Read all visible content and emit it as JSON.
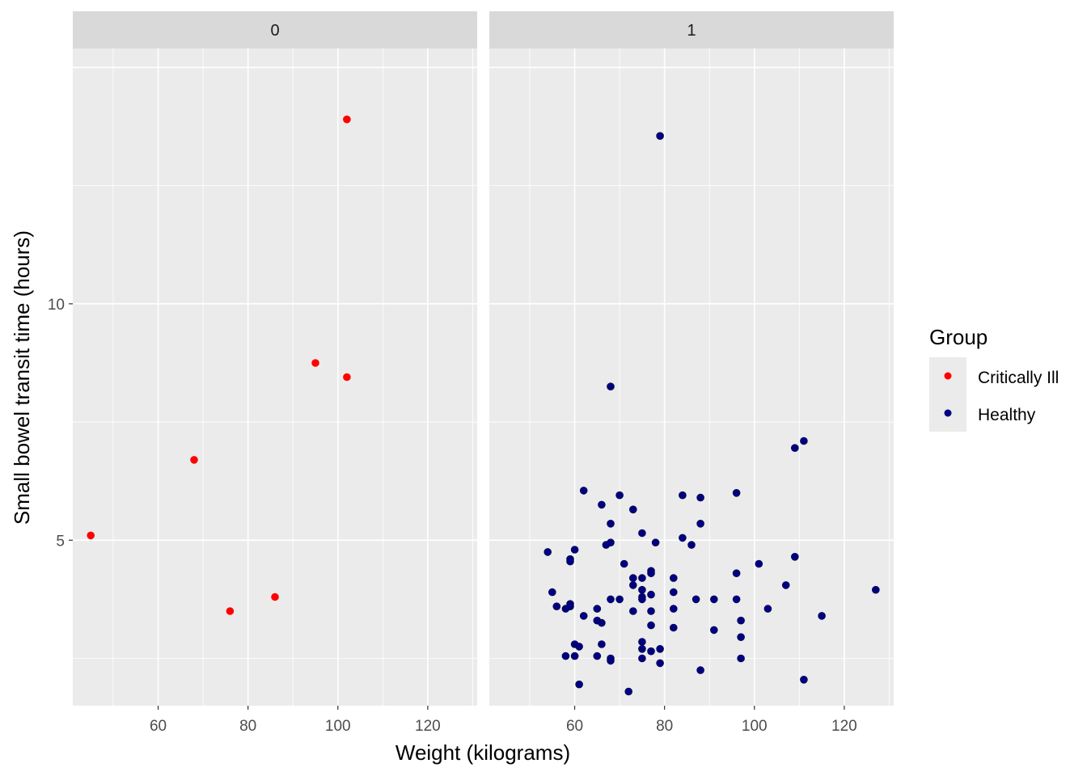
{
  "chart_data": {
    "type": "scatter",
    "facet_labels": [
      "0",
      "1"
    ],
    "xlabel": "Weight (kilograms)",
    "ylabel": "Small bowel transit time (hours)",
    "xlim": [
      41,
      131
    ],
    "ylim": [
      1.5,
      15.4
    ],
    "x_ticks": [
      60,
      80,
      100,
      120
    ],
    "x_tick_labels": [
      "60",
      "80",
      "100",
      "120"
    ],
    "y_ticks": [
      5,
      10
    ],
    "y_tick_labels": [
      "5",
      "10"
    ],
    "legend": {
      "title": "Group",
      "position": "right",
      "entries": [
        {
          "label": "Critically Ill",
          "color": "#FF0000"
        },
        {
          "label": "Healthy",
          "color": "#00007F"
        }
      ]
    },
    "series": [
      {
        "facet": "0",
        "group": "Critically Ill",
        "color": "#FF0000",
        "points": [
          [
            102,
            13.9
          ],
          [
            95,
            8.75
          ],
          [
            102,
            8.45
          ],
          [
            68,
            6.7
          ],
          [
            45,
            5.1
          ],
          [
            86,
            3.8
          ],
          [
            76,
            3.5
          ]
        ]
      },
      {
        "facet": "1",
        "group": "Healthy",
        "color": "#00007F",
        "points": [
          [
            79,
            13.55
          ],
          [
            68,
            8.25
          ],
          [
            111,
            7.1
          ],
          [
            109,
            6.95
          ],
          [
            62,
            6.05
          ],
          [
            70,
            5.95
          ],
          [
            84,
            5.95
          ],
          [
            88,
            5.9
          ],
          [
            96,
            6.0
          ],
          [
            66,
            5.75
          ],
          [
            73,
            5.65
          ],
          [
            68,
            5.35
          ],
          [
            88,
            5.35
          ],
          [
            75,
            5.15
          ],
          [
            84,
            5.05
          ],
          [
            67,
            4.9
          ],
          [
            68,
            4.95
          ],
          [
            78,
            4.95
          ],
          [
            86,
            4.9
          ],
          [
            54,
            4.75
          ],
          [
            60,
            4.8
          ],
          [
            59,
            4.6
          ],
          [
            59,
            4.55
          ],
          [
            109,
            4.65
          ],
          [
            71,
            4.5
          ],
          [
            101,
            4.5
          ],
          [
            96,
            4.3
          ],
          [
            77,
            4.35
          ],
          [
            77,
            4.3
          ],
          [
            73,
            4.2
          ],
          [
            75,
            4.2
          ],
          [
            82,
            4.2
          ],
          [
            73,
            4.05
          ],
          [
            107,
            4.05
          ],
          [
            55,
            3.9
          ],
          [
            75,
            3.95
          ],
          [
            82,
            3.9
          ],
          [
            127,
            3.95
          ],
          [
            75,
            3.8
          ],
          [
            77,
            3.85
          ],
          [
            68,
            3.75
          ],
          [
            70,
            3.75
          ],
          [
            75,
            3.75
          ],
          [
            87,
            3.75
          ],
          [
            91,
            3.75
          ],
          [
            96,
            3.75
          ],
          [
            56,
            3.6
          ],
          [
            59,
            3.6
          ],
          [
            58,
            3.55
          ],
          [
            59,
            3.65
          ],
          [
            65,
            3.55
          ],
          [
            73,
            3.5
          ],
          [
            77,
            3.5
          ],
          [
            82,
            3.55
          ],
          [
            103,
            3.55
          ],
          [
            62,
            3.4
          ],
          [
            65,
            3.3
          ],
          [
            66,
            3.25
          ],
          [
            97,
            3.3
          ],
          [
            115,
            3.4
          ],
          [
            77,
            3.2
          ],
          [
            82,
            3.15
          ],
          [
            91,
            3.1
          ],
          [
            97,
            2.95
          ],
          [
            60,
            2.8
          ],
          [
            61,
            2.75
          ],
          [
            66,
            2.8
          ],
          [
            75,
            2.85
          ],
          [
            75,
            2.7
          ],
          [
            79,
            2.7
          ],
          [
            77,
            2.65
          ],
          [
            58,
            2.55
          ],
          [
            60,
            2.55
          ],
          [
            65,
            2.55
          ],
          [
            68,
            2.5
          ],
          [
            68,
            2.45
          ],
          [
            75,
            2.5
          ],
          [
            79,
            2.4
          ],
          [
            97,
            2.5
          ],
          [
            88,
            2.25
          ],
          [
            61,
            1.95
          ],
          [
            72,
            1.8
          ],
          [
            111,
            2.05
          ]
        ]
      }
    ]
  }
}
